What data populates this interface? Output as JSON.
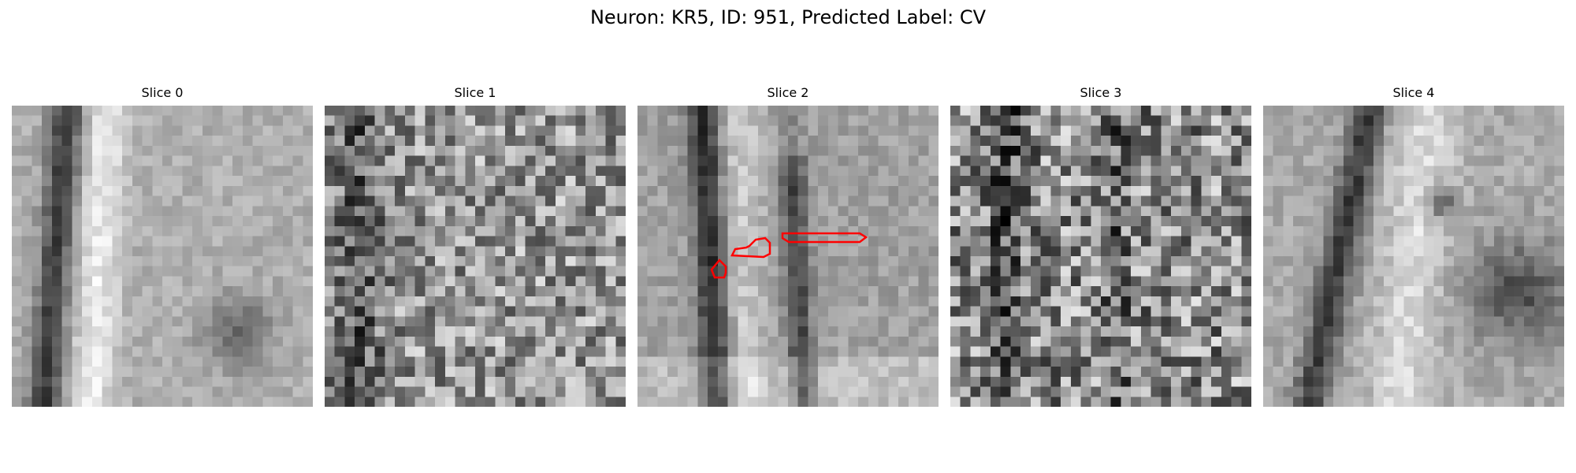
{
  "figure": {
    "title": "Neuron: KR5, ID: 951, Predicted Label: CV"
  },
  "slices": [
    {
      "title": "Slice 0",
      "texture": "smooth-ridge",
      "seed": 11
    },
    {
      "title": "Slice 1",
      "texture": "noisy",
      "seed": 23
    },
    {
      "title": "Slice 2",
      "texture": "smooth-center",
      "seed": 37,
      "has_contours": true
    },
    {
      "title": "Slice 3",
      "texture": "very-noisy",
      "seed": 41
    },
    {
      "title": "Slice 4",
      "texture": "smooth-ridge-right",
      "seed": 53
    }
  ],
  "colors": {
    "contour": "#ff0000",
    "background": "#ffffff"
  }
}
